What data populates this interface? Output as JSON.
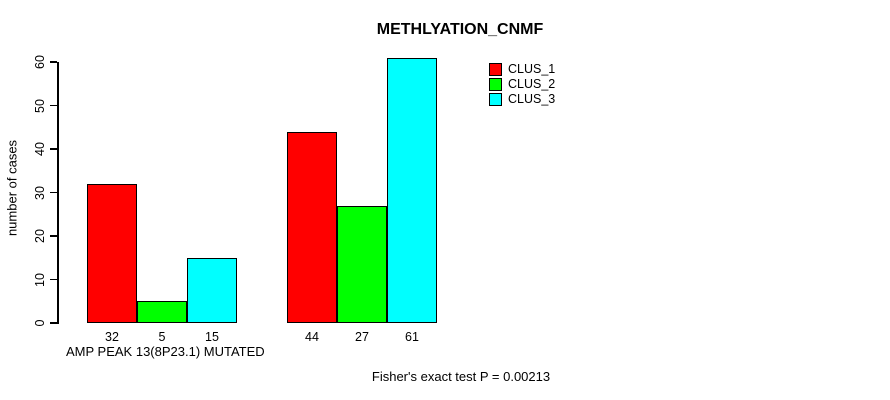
{
  "figure": {
    "background": "#ffffff",
    "text_color": "#000000"
  },
  "chart_data": {
    "type": "bar",
    "title": "METHLYATION_CNMF",
    "ylabel": "number of cases",
    "xlabel": "AMP PEAK 13(8P23.1) MUTATED",
    "annotation": "Fisher's exact test P = 0.00213",
    "ylim": [
      0,
      61
    ],
    "yticks": [
      0,
      10,
      20,
      30,
      40,
      50,
      60
    ],
    "grid": false,
    "legend_position": "top-right",
    "bar_border_color": "#000000",
    "groups": 2,
    "series": [
      {
        "name": "CLUS_1",
        "color": "#ff0000",
        "values": [
          32,
          44
        ]
      },
      {
        "name": "CLUS_2",
        "color": "#00ff00",
        "values": [
          5,
          27
        ]
      },
      {
        "name": "CLUS_3",
        "color": "#00ffff",
        "values": [
          15,
          61
        ]
      }
    ]
  }
}
